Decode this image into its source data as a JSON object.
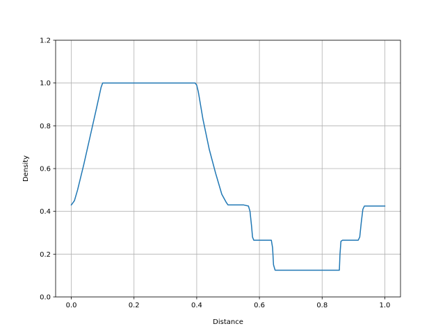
{
  "chart_data": {
    "type": "line",
    "title": "",
    "xlabel": "Distance",
    "ylabel": "Density",
    "xlim": [
      -0.05,
      1.05
    ],
    "ylim": [
      0.0,
      1.2
    ],
    "xticks": [
      0.0,
      0.2,
      0.4,
      0.6,
      0.8,
      1.0
    ],
    "yticks": [
      0.0,
      0.2,
      0.4,
      0.6,
      0.8,
      1.0,
      1.2
    ],
    "xtick_labels": [
      "0.0",
      "0.2",
      "0.4",
      "0.6",
      "0.8",
      "1.0"
    ],
    "ytick_labels": [
      "0.0",
      "0.2",
      "0.4",
      "0.6",
      "0.8",
      "1.0",
      "1.2"
    ],
    "grid": true,
    "series": [
      {
        "color": "#1f77b4",
        "x": [
          0.0,
          0.01,
          0.02,
          0.04,
          0.06,
          0.08,
          0.095,
          0.1,
          0.105,
          0.2,
          0.3,
          0.395,
          0.4,
          0.405,
          0.42,
          0.44,
          0.46,
          0.48,
          0.495,
          0.5,
          0.55,
          0.565,
          0.57,
          0.575,
          0.578,
          0.582,
          0.6,
          0.62,
          0.638,
          0.642,
          0.645,
          0.65,
          0.7,
          0.8,
          0.855,
          0.857,
          0.86,
          0.865,
          0.9,
          0.915,
          0.92,
          0.925,
          0.93,
          0.935,
          0.95,
          1.0
        ],
        "y": [
          0.43,
          0.45,
          0.5,
          0.62,
          0.75,
          0.88,
          0.98,
          1.0,
          1.0,
          1.0,
          1.0,
          1.0,
          0.99,
          0.96,
          0.83,
          0.69,
          0.58,
          0.48,
          0.44,
          0.43,
          0.43,
          0.425,
          0.4,
          0.33,
          0.28,
          0.265,
          0.265,
          0.265,
          0.265,
          0.23,
          0.15,
          0.125,
          0.125,
          0.125,
          0.125,
          0.2,
          0.26,
          0.265,
          0.265,
          0.265,
          0.28,
          0.35,
          0.41,
          0.425,
          0.425,
          0.425
        ]
      }
    ]
  }
}
